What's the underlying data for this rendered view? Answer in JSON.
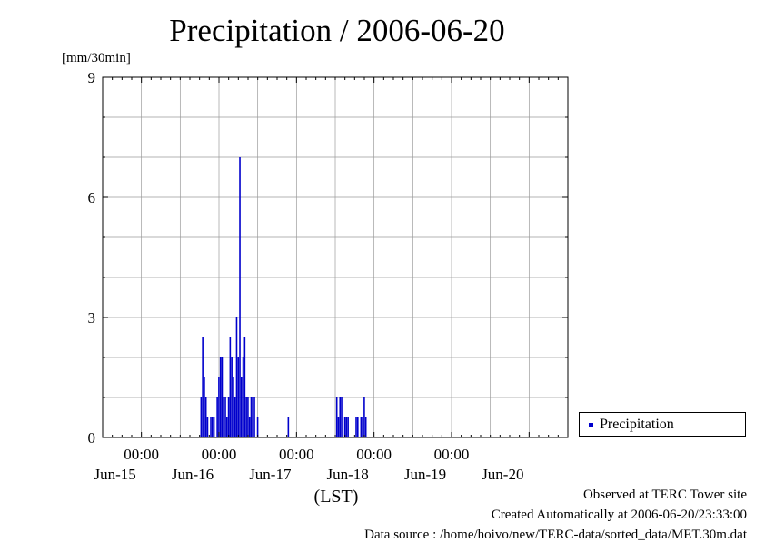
{
  "title": "Precipitation / 2006-06-20",
  "ylabel": "[mm/30min]",
  "xlabel": "(LST)",
  "footer": {
    "observed": "Observed at TERC Tower site",
    "created": "Created Automatically at 2006-06-20/23:33:00",
    "source": "Data source : /home/hoivo/new/TERC-data/sorted_data/MET.30m.dat"
  },
  "legend": {
    "label": "Precipitation",
    "color": "#0000cc"
  },
  "chart_data": {
    "type": "bar",
    "title": "Precipitation / 2006-06-20",
    "ylabel": "[mm/30min]",
    "xlabel": "(LST)",
    "ylim": [
      0,
      9
    ],
    "yticks": [
      0,
      3,
      6,
      9
    ],
    "xlim": [
      "2006-06-14 12:00",
      "2006-06-20 12:00"
    ],
    "xtick_time_label": "00:00",
    "xtick_dates": [
      "Jun-15",
      "Jun-16",
      "Jun-17",
      "Jun-18",
      "Jun-19",
      "Jun-20"
    ],
    "grid": true,
    "legend_position": "right",
    "series": [
      {
        "name": "Precipitation",
        "color": "#0000cc",
        "points": [
          [
            "2006-06-15 18:30",
            1.0
          ],
          [
            "2006-06-15 19:00",
            2.5
          ],
          [
            "2006-06-15 19:30",
            1.5
          ],
          [
            "2006-06-15 20:00",
            1.0
          ],
          [
            "2006-06-15 20:30",
            0.5
          ],
          [
            "2006-06-15 21:30",
            0.5
          ],
          [
            "2006-06-15 22:00",
            0.5
          ],
          [
            "2006-06-15 22:30",
            0.5
          ],
          [
            "2006-06-15 23:30",
            1.0
          ],
          [
            "2006-06-16 00:00",
            1.5
          ],
          [
            "2006-06-16 00:30",
            2.0
          ],
          [
            "2006-06-16 01:00",
            2.0
          ],
          [
            "2006-06-16 01:30",
            1.0
          ],
          [
            "2006-06-16 02:00",
            1.0
          ],
          [
            "2006-06-16 02:30",
            0.5
          ],
          [
            "2006-06-16 03:00",
            1.0
          ],
          [
            "2006-06-16 03:30",
            2.5
          ],
          [
            "2006-06-16 04:00",
            2.0
          ],
          [
            "2006-06-16 04:30",
            1.5
          ],
          [
            "2006-06-16 05:00",
            1.0
          ],
          [
            "2006-06-16 05:30",
            3.0
          ],
          [
            "2006-06-16 06:00",
            2.0
          ],
          [
            "2006-06-16 06:30",
            7.0
          ],
          [
            "2006-06-16 07:00",
            1.5
          ],
          [
            "2006-06-16 07:30",
            2.0
          ],
          [
            "2006-06-16 08:00",
            2.5
          ],
          [
            "2006-06-16 08:30",
            1.0
          ],
          [
            "2006-06-16 09:00",
            1.0
          ],
          [
            "2006-06-16 09:30",
            0.5
          ],
          [
            "2006-06-16 10:00",
            1.0
          ],
          [
            "2006-06-16 10:30",
            1.0
          ],
          [
            "2006-06-16 11:00",
            1.0
          ],
          [
            "2006-06-16 12:00",
            0.5
          ],
          [
            "2006-06-16 21:30",
            0.5
          ],
          [
            "2006-06-17 12:30",
            1.0
          ],
          [
            "2006-06-17 13:00",
            0.5
          ],
          [
            "2006-06-17 13:30",
            1.0
          ],
          [
            "2006-06-17 14:00",
            1.0
          ],
          [
            "2006-06-17 15:00",
            0.5
          ],
          [
            "2006-06-17 15:30",
            0.5
          ],
          [
            "2006-06-17 16:00",
            0.5
          ],
          [
            "2006-06-17 18:30",
            0.5
          ],
          [
            "2006-06-17 19:00",
            0.5
          ],
          [
            "2006-06-17 20:00",
            0.5
          ],
          [
            "2006-06-17 20:30",
            0.5
          ],
          [
            "2006-06-17 21:00",
            1.0
          ],
          [
            "2006-06-17 21:30",
            0.5
          ]
        ]
      }
    ]
  }
}
